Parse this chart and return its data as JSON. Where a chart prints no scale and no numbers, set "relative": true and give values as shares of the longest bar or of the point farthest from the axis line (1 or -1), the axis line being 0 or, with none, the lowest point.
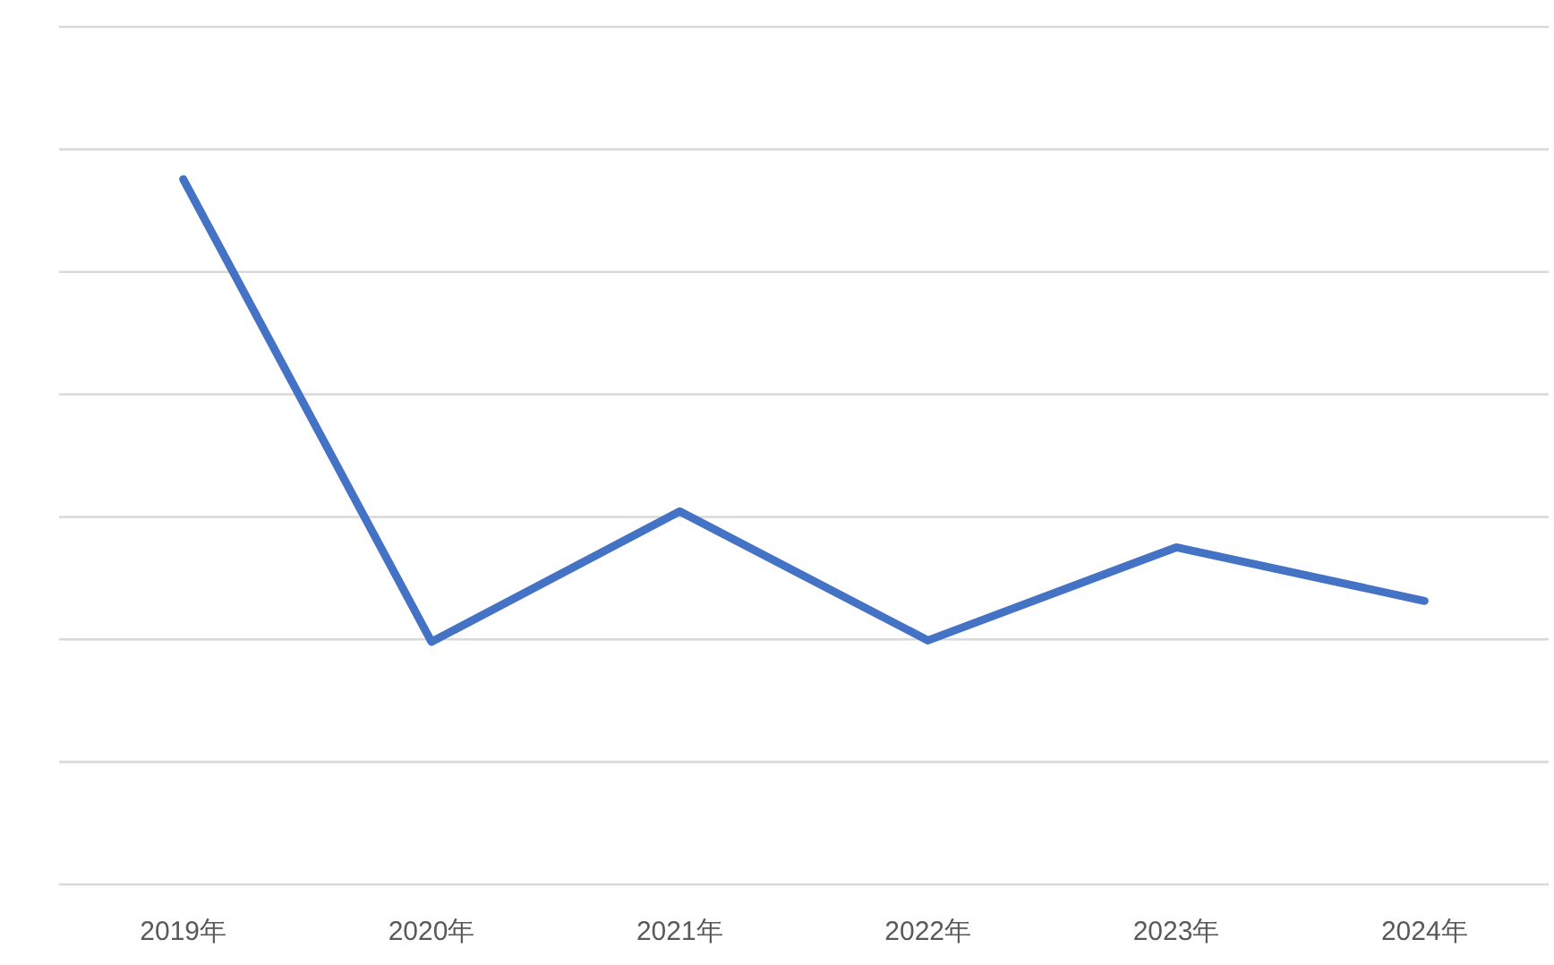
{
  "chart_data": {
    "type": "line",
    "relative": true,
    "grid": "y",
    "marker": "none",
    "line_style": "solid",
    "categories": [
      "2019年",
      "2020年",
      "2021年",
      "2022年",
      "2023年",
      "2024年"
    ],
    "series": [
      {
        "color": "#4472c4",
        "values": [
          1,
          0.344,
          0.529,
          0.346,
          0.478,
          0.402
        ]
      }
    ]
  }
}
